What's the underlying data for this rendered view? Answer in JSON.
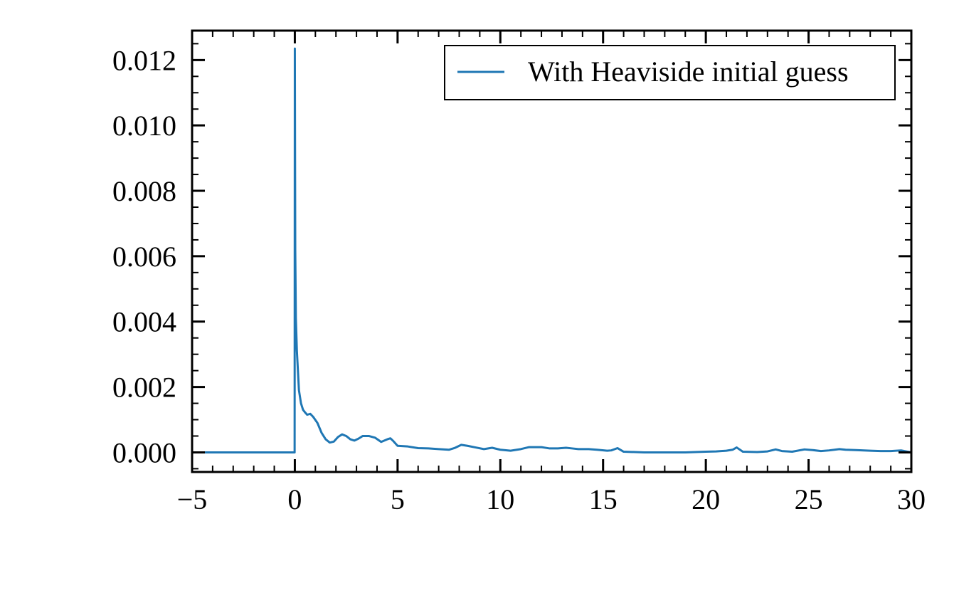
{
  "chart_data": {
    "type": "line",
    "title": "",
    "xlabel": "",
    "ylabel": "",
    "xlim": [
      -5,
      30
    ],
    "ylim": [
      -0.0006,
      0.0129
    ],
    "x_ticks": [
      -5,
      0,
      5,
      10,
      15,
      20,
      25,
      30
    ],
    "x_tick_labels": [
      "−5",
      "0",
      "5",
      "10",
      "15",
      "20",
      "25",
      "30"
    ],
    "y_ticks": [
      0,
      0.002,
      0.004,
      0.006,
      0.008,
      0.01,
      0.012
    ],
    "y_tick_labels": [
      "0.000",
      "0.002",
      "0.004",
      "0.006",
      "0.008",
      "0.010",
      "0.012"
    ],
    "grid": false,
    "legend": {
      "position": "top-right",
      "entries": [
        "With Heaviside initial guess"
      ]
    },
    "series": [
      {
        "name": "With Heaviside initial guess",
        "color": "#1f77b4",
        "points": [
          [
            -5,
            0.0
          ],
          [
            -0.01,
            0.0
          ],
          [
            0.0,
            0.01235
          ],
          [
            0.02,
            0.0062
          ],
          [
            0.05,
            0.0041
          ],
          [
            0.1,
            0.0031
          ],
          [
            0.15,
            0.0025
          ],
          [
            0.2,
            0.0019
          ],
          [
            0.3,
            0.0015
          ],
          [
            0.4,
            0.0013
          ],
          [
            0.5,
            0.00122
          ],
          [
            0.6,
            0.00115
          ],
          [
            0.75,
            0.00118
          ],
          [
            0.9,
            0.00108
          ],
          [
            1.1,
            0.0009
          ],
          [
            1.3,
            0.0006
          ],
          [
            1.5,
            0.0004
          ],
          [
            1.7,
            0.0003
          ],
          [
            1.9,
            0.00033
          ],
          [
            2.1,
            0.00047
          ],
          [
            2.3,
            0.00055
          ],
          [
            2.5,
            0.0005
          ],
          [
            2.7,
            0.0004
          ],
          [
            2.9,
            0.00036
          ],
          [
            3.1,
            0.00042
          ],
          [
            3.3,
            0.0005
          ],
          [
            3.6,
            0.0005
          ],
          [
            3.9,
            0.00045
          ],
          [
            4.2,
            0.00032
          ],
          [
            4.5,
            0.0004
          ],
          [
            4.65,
            0.00043
          ],
          [
            4.8,
            0.00034
          ],
          [
            5.0,
            0.0002
          ],
          [
            5.5,
            0.00018
          ],
          [
            6.0,
            0.00013
          ],
          [
            6.5,
            0.00012
          ],
          [
            7.0,
            0.0001
          ],
          [
            7.5,
            8e-05
          ],
          [
            7.8,
            0.00014
          ],
          [
            8.1,
            0.00023
          ],
          [
            8.4,
            0.0002
          ],
          [
            8.8,
            0.00015
          ],
          [
            9.2,
            0.0001
          ],
          [
            9.6,
            0.00014
          ],
          [
            10.0,
            8e-05
          ],
          [
            10.5,
            5e-05
          ],
          [
            11.0,
            0.0001
          ],
          [
            11.4,
            0.00016
          ],
          [
            12.0,
            0.00016
          ],
          [
            12.4,
            0.00012
          ],
          [
            12.8,
            0.00012
          ],
          [
            13.2,
            0.00014
          ],
          [
            13.5,
            0.00012
          ],
          [
            13.8,
            0.0001
          ],
          [
            14.3,
            0.0001
          ],
          [
            14.7,
            8e-05
          ],
          [
            15.2,
            5e-05
          ],
          [
            15.4,
            6e-05
          ],
          [
            15.7,
            0.00013
          ],
          [
            16.0,
            2e-05
          ],
          [
            17.0,
            0.0
          ],
          [
            18.0,
            0.0
          ],
          [
            19.0,
            0.0
          ],
          [
            20.0,
            2e-05
          ],
          [
            20.5,
            3e-05
          ],
          [
            21.0,
            5e-05
          ],
          [
            21.3,
            8e-05
          ],
          [
            21.5,
            0.00015
          ],
          [
            21.8,
            2e-05
          ],
          [
            22.5,
            1e-05
          ],
          [
            23.0,
            3e-05
          ],
          [
            23.4,
            9e-05
          ],
          [
            23.7,
            4e-05
          ],
          [
            24.2,
            2e-05
          ],
          [
            24.8,
            9e-05
          ],
          [
            25.2,
            7e-05
          ],
          [
            25.6,
            4e-05
          ],
          [
            26.0,
            6e-05
          ],
          [
            26.5,
            0.0001
          ],
          [
            26.8,
            8e-05
          ],
          [
            27.3,
            7e-05
          ],
          [
            28.0,
            5e-05
          ],
          [
            28.5,
            4e-05
          ],
          [
            29.0,
            4e-05
          ],
          [
            29.5,
            6e-05
          ],
          [
            30.0,
            0.0
          ]
        ]
      }
    ]
  }
}
